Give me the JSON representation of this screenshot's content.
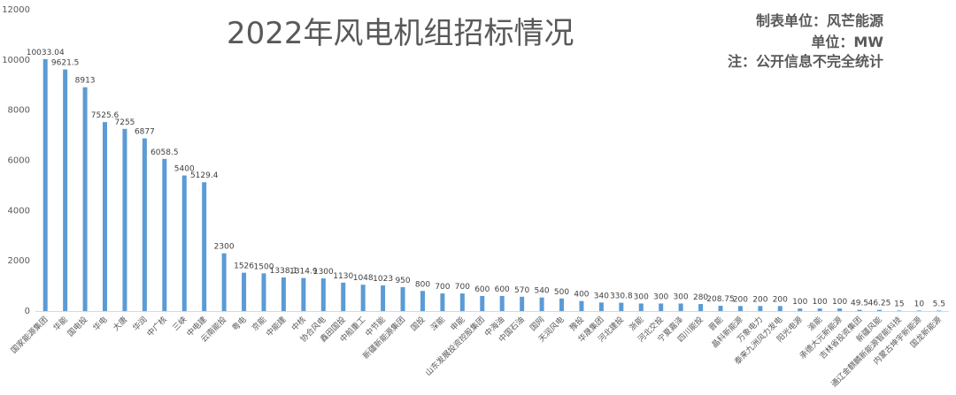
{
  "chart_data": {
    "type": "bar",
    "title": "2022年风电机组招标情况",
    "notes": [
      "制表单位：风芒能源",
      "单位：MW",
      "注：公开信息不完全统计"
    ],
    "ylim": [
      0,
      12000
    ],
    "yticks": [
      0,
      2000,
      4000,
      6000,
      8000,
      10000,
      12000
    ],
    "bar_color": "#5b9bd5",
    "categories": [
      "国家能源集团",
      "华能",
      "国电投",
      "华电",
      "大唐",
      "华润",
      "中广核",
      "三峡",
      "中电建",
      "云南能投",
      "粤电",
      "京能",
      "中能建",
      "中核",
      "协合风电",
      "鑫田国投",
      "中船重工",
      "中节能",
      "新疆新能源集团",
      "国投",
      "深能",
      "申能",
      "山东发展投资控股集团",
      "中海油",
      "中国石油",
      "国网",
      "天润风电",
      "豫投",
      "华晟集团",
      "河北建投",
      "浙能",
      "河北交投",
      "宁夏嘉泽",
      "四川能投",
      "晋能",
      "晶科新能源",
      "万象电力",
      "泰来九洲风力发电",
      "阳光电源",
      "渝能",
      "承德大元新能源",
      "吉林省投资集团",
      "新疆风能",
      "通辽金麒麟新能源智能科技",
      "内蒙古坤宇新能源",
      "国龙新能源"
    ],
    "values": [
      10033.04,
      9621.5,
      8913,
      7525.6,
      7255,
      6877,
      6058.5,
      5400,
      5129.4,
      2300,
      1526,
      1500,
      1338.1,
      1314.9,
      1300,
      1130,
      1048,
      1023,
      950,
      800,
      700,
      700,
      600,
      600,
      570,
      540,
      500,
      400,
      340,
      330.8,
      300,
      300,
      300,
      280,
      208.75,
      200,
      200,
      200,
      100,
      100,
      100,
      49.5,
      46.25,
      15,
      10,
      5.5
    ],
    "labels": [
      "10033.04",
      "9621.5",
      "8913",
      "7525.6",
      "7255",
      "6877",
      "6058.5",
      "5400",
      "5129.4",
      "2300",
      "1526",
      "1500",
      "1338.1",
      "1314.9",
      "1300",
      "1130",
      "1048",
      "1023",
      "950",
      "800",
      "700",
      "700",
      "600",
      "600",
      "570",
      "540",
      "500",
      "400",
      "340",
      "330.8",
      "300",
      "300",
      "300",
      "280",
      "208.75",
      "200",
      "200",
      "200",
      "100",
      "100",
      "100",
      "49.5",
      "46.25",
      "15",
      "10",
      "5.5"
    ],
    "grid": false,
    "legend": "none"
  }
}
